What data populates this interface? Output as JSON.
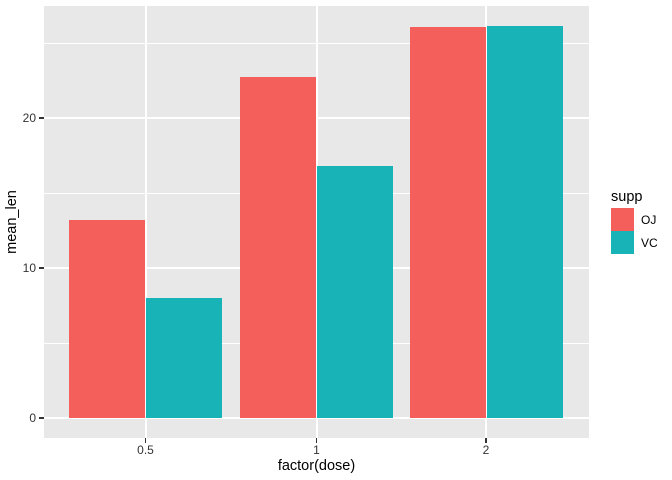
{
  "figure": {
    "background": "#FFFFFF",
    "panel_background": "#E8E8E8",
    "grid_color": "#FFFFFF",
    "tick_color": "#333333"
  },
  "chart_data": {
    "type": "bar",
    "variant": "grouped-dodged",
    "title": "",
    "xlabel": "factor(dose)",
    "ylabel": "mean_len",
    "categories": [
      "0.5",
      "1",
      "2"
    ],
    "series": [
      {
        "name": "OJ",
        "color": "#F45F5C",
        "values": [
          13.23,
          22.7,
          26.06
        ]
      },
      {
        "name": "VC",
        "color": "#17B3B7",
        "values": [
          7.98,
          16.77,
          26.14
        ]
      }
    ],
    "legend": {
      "title": "supp",
      "position": "right",
      "entries": [
        "OJ",
        "VC"
      ]
    },
    "y_ticks": [
      0,
      10,
      20
    ],
    "y_minor_ticks": [
      5,
      15,
      25
    ],
    "ylim": [
      -1.3,
      27.5
    ],
    "grid": "white major+minor horizontal, white major vertical, on grey panel"
  }
}
